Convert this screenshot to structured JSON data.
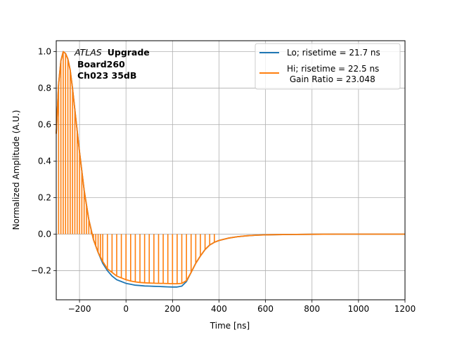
{
  "chart_data": {
    "type": "line",
    "title": "",
    "xlabel": "Time [ns]",
    "ylabel": "Normalized Amplitude (A.U.)",
    "xlim": [
      -300,
      1200
    ],
    "ylim": [
      -0.36,
      1.06
    ],
    "xticks": [
      -200,
      0,
      200,
      400,
      600,
      800,
      1000,
      1200
    ],
    "yticks": [
      -0.2,
      0.0,
      0.2,
      0.4,
      0.6,
      0.8,
      1.0
    ],
    "xtick_labels": [
      "−200",
      "0",
      "200",
      "400",
      "600",
      "800",
      "1000",
      "1200"
    ],
    "ytick_labels": [
      "−0.2",
      "0.0",
      "0.2",
      "0.4",
      "0.6",
      "0.8",
      "1.0"
    ],
    "grid": true,
    "legend_position": "top-right",
    "annotation": {
      "italic": "ATLAS",
      "bold": "Upgrade",
      "line2": "Board260",
      "line3": "Ch023 35dB"
    },
    "series": [
      {
        "name": "Lo; risetime = 21.7 ns",
        "color": "#1f77b4",
        "x": [
          -300,
          -290,
          -280,
          -270,
          -260,
          -250,
          -240,
          -230,
          -220,
          -200,
          -180,
          -160,
          -140,
          -120,
          -100,
          -80,
          -60,
          -40,
          -20,
          0,
          20,
          40,
          60,
          80,
          100,
          120,
          140,
          160,
          180,
          200,
          220,
          240,
          260,
          280,
          300,
          320,
          340,
          360,
          380,
          400,
          440,
          480,
          520,
          560,
          600,
          650,
          700,
          800,
          900,
          1000,
          1100,
          1200
        ],
        "y": [
          0.55,
          0.82,
          0.95,
          1.0,
          0.99,
          0.96,
          0.9,
          0.8,
          0.68,
          0.45,
          0.24,
          0.08,
          -0.03,
          -0.1,
          -0.16,
          -0.2,
          -0.23,
          -0.25,
          -0.26,
          -0.27,
          -0.275,
          -0.28,
          -0.282,
          -0.284,
          -0.285,
          -0.286,
          -0.287,
          -0.288,
          -0.289,
          -0.29,
          -0.29,
          -0.285,
          -0.26,
          -0.21,
          -0.16,
          -0.12,
          -0.085,
          -0.06,
          -0.045,
          -0.035,
          -0.022,
          -0.014,
          -0.009,
          -0.006,
          -0.004,
          -0.003,
          -0.002,
          -0.001,
          0.0,
          0.0,
          0.0,
          0.0
        ]
      },
      {
        "name": "Hi; risetime = 22.5 ns",
        "name_line2": " Gain Ratio = 23.048",
        "color": "#ff7f0e",
        "x": [
          -300,
          -290,
          -280,
          -270,
          -260,
          -250,
          -240,
          -230,
          -220,
          -200,
          -180,
          -160,
          -140,
          -120,
          -100,
          -80,
          -60,
          -40,
          -20,
          0,
          20,
          40,
          60,
          80,
          100,
          120,
          140,
          160,
          180,
          200,
          220,
          240,
          260,
          280,
          300,
          320,
          340,
          360,
          380,
          400,
          440,
          480,
          520,
          560,
          600,
          650,
          700,
          800,
          900,
          1000,
          1100,
          1200
        ],
        "y": [
          0.55,
          0.82,
          0.95,
          1.0,
          0.99,
          0.96,
          0.9,
          0.8,
          0.68,
          0.45,
          0.24,
          0.08,
          -0.03,
          -0.1,
          -0.15,
          -0.19,
          -0.21,
          -0.23,
          -0.24,
          -0.25,
          -0.257,
          -0.262,
          -0.265,
          -0.267,
          -0.268,
          -0.269,
          -0.27,
          -0.27,
          -0.271,
          -0.272,
          -0.272,
          -0.27,
          -0.255,
          -0.21,
          -0.16,
          -0.12,
          -0.085,
          -0.06,
          -0.045,
          -0.035,
          -0.022,
          -0.014,
          -0.009,
          -0.006,
          -0.004,
          -0.003,
          -0.002,
          -0.001,
          0.0,
          0.0,
          0.0,
          0.0
        ]
      }
    ],
    "hi_spikes_x": [
      -290,
      -280,
      -270,
      -260,
      -250,
      -240,
      -230,
      -220,
      -210,
      -200,
      -190,
      -180,
      -170,
      -160,
      -150,
      -140,
      -130,
      -120,
      -110,
      -100,
      -80,
      -60,
      -40,
      -20,
      0,
      20,
      40,
      60,
      80,
      100,
      120,
      140,
      160,
      180,
      200,
      220,
      240,
      260,
      280,
      300,
      320,
      340,
      360,
      380
    ]
  }
}
